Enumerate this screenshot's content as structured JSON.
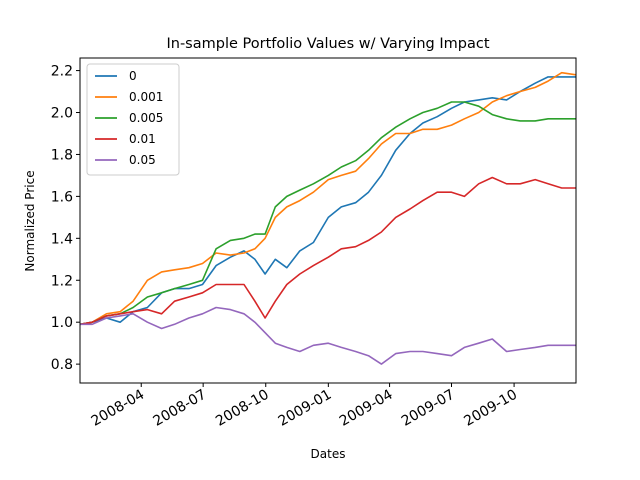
{
  "chart_data": {
    "type": "line",
    "title": "In-sample Portfolio Values w/ Varying Impact",
    "xlabel": "Dates",
    "ylabel": "Normalized Price",
    "xlim": [
      "2008-01-02",
      "2009-12-31"
    ],
    "ylim": [
      0.71,
      2.26
    ],
    "x_ticks": [
      "2008-04",
      "2008-07",
      "2008-10",
      "2009-01",
      "2009-04",
      "2009-07",
      "2009-10"
    ],
    "y_ticks": [
      0.8,
      1.0,
      1.2,
      1.4,
      1.6,
      1.8,
      2.0,
      2.2
    ],
    "grid": false,
    "legend_placement": "upper-left",
    "series": [
      {
        "name": "0",
        "color": "#1f77b4",
        "points": [
          [
            "2008-01-02",
            0.99
          ],
          [
            "2008-01-20",
            1.0
          ],
          [
            "2008-02-10",
            1.02
          ],
          [
            "2008-03-01",
            1.0
          ],
          [
            "2008-03-20",
            1.05
          ],
          [
            "2008-04-10",
            1.07
          ],
          [
            "2008-05-01",
            1.14
          ],
          [
            "2008-05-20",
            1.16
          ],
          [
            "2008-06-10",
            1.16
          ],
          [
            "2008-06-30",
            1.18
          ],
          [
            "2008-07-20",
            1.27
          ],
          [
            "2008-08-10",
            1.31
          ],
          [
            "2008-08-30",
            1.34
          ],
          [
            "2008-09-15",
            1.3
          ],
          [
            "2008-09-30",
            1.23
          ],
          [
            "2008-10-15",
            1.3
          ],
          [
            "2008-11-01",
            1.26
          ],
          [
            "2008-11-20",
            1.34
          ],
          [
            "2008-12-10",
            1.38
          ],
          [
            "2009-01-01",
            1.5
          ],
          [
            "2009-01-20",
            1.55
          ],
          [
            "2009-02-10",
            1.57
          ],
          [
            "2009-03-01",
            1.62
          ],
          [
            "2009-03-20",
            1.7
          ],
          [
            "2009-04-10",
            1.82
          ],
          [
            "2009-05-01",
            1.9
          ],
          [
            "2009-05-20",
            1.95
          ],
          [
            "2009-06-10",
            1.98
          ],
          [
            "2009-07-01",
            2.02
          ],
          [
            "2009-07-20",
            2.05
          ],
          [
            "2009-08-10",
            2.06
          ],
          [
            "2009-08-30",
            2.07
          ],
          [
            "2009-09-20",
            2.06
          ],
          [
            "2009-10-10",
            2.1
          ],
          [
            "2009-11-01",
            2.14
          ],
          [
            "2009-11-20",
            2.17
          ],
          [
            "2009-12-10",
            2.17
          ],
          [
            "2009-12-31",
            2.17
          ]
        ]
      },
      {
        "name": "0.001",
        "color": "#ff7f0e",
        "points": [
          [
            "2008-01-02",
            0.99
          ],
          [
            "2008-01-20",
            1.0
          ],
          [
            "2008-02-10",
            1.04
          ],
          [
            "2008-03-01",
            1.05
          ],
          [
            "2008-03-20",
            1.1
          ],
          [
            "2008-04-10",
            1.2
          ],
          [
            "2008-05-01",
            1.24
          ],
          [
            "2008-05-20",
            1.25
          ],
          [
            "2008-06-10",
            1.26
          ],
          [
            "2008-06-30",
            1.28
          ],
          [
            "2008-07-20",
            1.33
          ],
          [
            "2008-08-10",
            1.32
          ],
          [
            "2008-08-30",
            1.33
          ],
          [
            "2008-09-15",
            1.35
          ],
          [
            "2008-09-30",
            1.4
          ],
          [
            "2008-10-15",
            1.5
          ],
          [
            "2008-11-01",
            1.55
          ],
          [
            "2008-11-20",
            1.58
          ],
          [
            "2008-12-10",
            1.62
          ],
          [
            "2009-01-01",
            1.68
          ],
          [
            "2009-01-20",
            1.7
          ],
          [
            "2009-02-10",
            1.72
          ],
          [
            "2009-03-01",
            1.78
          ],
          [
            "2009-03-20",
            1.85
          ],
          [
            "2009-04-10",
            1.9
          ],
          [
            "2009-05-01",
            1.9
          ],
          [
            "2009-05-20",
            1.92
          ],
          [
            "2009-06-10",
            1.92
          ],
          [
            "2009-07-01",
            1.94
          ],
          [
            "2009-07-20",
            1.97
          ],
          [
            "2009-08-10",
            2.0
          ],
          [
            "2009-08-30",
            2.05
          ],
          [
            "2009-09-20",
            2.08
          ],
          [
            "2009-10-10",
            2.1
          ],
          [
            "2009-11-01",
            2.12
          ],
          [
            "2009-11-20",
            2.15
          ],
          [
            "2009-12-10",
            2.19
          ],
          [
            "2009-12-31",
            2.18
          ]
        ]
      },
      {
        "name": "0.005",
        "color": "#2ca02c",
        "points": [
          [
            "2008-01-02",
            0.99
          ],
          [
            "2008-01-20",
            1.0
          ],
          [
            "2008-02-10",
            1.03
          ],
          [
            "2008-03-01",
            1.04
          ],
          [
            "2008-03-20",
            1.07
          ],
          [
            "2008-04-10",
            1.12
          ],
          [
            "2008-05-01",
            1.14
          ],
          [
            "2008-05-20",
            1.16
          ],
          [
            "2008-06-10",
            1.18
          ],
          [
            "2008-06-30",
            1.2
          ],
          [
            "2008-07-20",
            1.35
          ],
          [
            "2008-08-10",
            1.39
          ],
          [
            "2008-08-30",
            1.4
          ],
          [
            "2008-09-15",
            1.42
          ],
          [
            "2008-09-30",
            1.42
          ],
          [
            "2008-10-15",
            1.55
          ],
          [
            "2008-11-01",
            1.6
          ],
          [
            "2008-11-20",
            1.63
          ],
          [
            "2008-12-10",
            1.66
          ],
          [
            "2009-01-01",
            1.7
          ],
          [
            "2009-01-20",
            1.74
          ],
          [
            "2009-02-10",
            1.77
          ],
          [
            "2009-03-01",
            1.82
          ],
          [
            "2009-03-20",
            1.88
          ],
          [
            "2009-04-10",
            1.93
          ],
          [
            "2009-05-01",
            1.97
          ],
          [
            "2009-05-20",
            2.0
          ],
          [
            "2009-06-10",
            2.02
          ],
          [
            "2009-07-01",
            2.05
          ],
          [
            "2009-07-20",
            2.05
          ],
          [
            "2009-08-10",
            2.03
          ],
          [
            "2009-08-30",
            1.99
          ],
          [
            "2009-09-20",
            1.97
          ],
          [
            "2009-10-10",
            1.96
          ],
          [
            "2009-11-01",
            1.96
          ],
          [
            "2009-11-20",
            1.97
          ],
          [
            "2009-12-10",
            1.97
          ],
          [
            "2009-12-31",
            1.97
          ]
        ]
      },
      {
        "name": "0.01",
        "color": "#d62728",
        "points": [
          [
            "2008-01-02",
            0.99
          ],
          [
            "2008-01-20",
            1.0
          ],
          [
            "2008-02-10",
            1.03
          ],
          [
            "2008-03-01",
            1.04
          ],
          [
            "2008-03-20",
            1.05
          ],
          [
            "2008-04-10",
            1.06
          ],
          [
            "2008-05-01",
            1.04
          ],
          [
            "2008-05-20",
            1.1
          ],
          [
            "2008-06-10",
            1.12
          ],
          [
            "2008-06-30",
            1.14
          ],
          [
            "2008-07-20",
            1.18
          ],
          [
            "2008-08-10",
            1.18
          ],
          [
            "2008-08-30",
            1.18
          ],
          [
            "2008-09-15",
            1.1
          ],
          [
            "2008-09-30",
            1.02
          ],
          [
            "2008-10-15",
            1.1
          ],
          [
            "2008-11-01",
            1.18
          ],
          [
            "2008-11-20",
            1.23
          ],
          [
            "2008-12-10",
            1.27
          ],
          [
            "2009-01-01",
            1.31
          ],
          [
            "2009-01-20",
            1.35
          ],
          [
            "2009-02-10",
            1.36
          ],
          [
            "2009-03-01",
            1.39
          ],
          [
            "2009-03-20",
            1.43
          ],
          [
            "2009-04-10",
            1.5
          ],
          [
            "2009-05-01",
            1.54
          ],
          [
            "2009-05-20",
            1.58
          ],
          [
            "2009-06-10",
            1.62
          ],
          [
            "2009-07-01",
            1.62
          ],
          [
            "2009-07-20",
            1.6
          ],
          [
            "2009-08-10",
            1.66
          ],
          [
            "2009-08-30",
            1.69
          ],
          [
            "2009-09-20",
            1.66
          ],
          [
            "2009-10-10",
            1.66
          ],
          [
            "2009-11-01",
            1.68
          ],
          [
            "2009-11-20",
            1.66
          ],
          [
            "2009-12-10",
            1.64
          ],
          [
            "2009-12-31",
            1.64
          ]
        ]
      },
      {
        "name": "0.05",
        "color": "#9467bd",
        "points": [
          [
            "2008-01-02",
            0.99
          ],
          [
            "2008-01-20",
            0.99
          ],
          [
            "2008-02-10",
            1.02
          ],
          [
            "2008-03-01",
            1.03
          ],
          [
            "2008-03-20",
            1.04
          ],
          [
            "2008-04-10",
            1.0
          ],
          [
            "2008-05-01",
            0.97
          ],
          [
            "2008-05-20",
            0.99
          ],
          [
            "2008-06-10",
            1.02
          ],
          [
            "2008-06-30",
            1.04
          ],
          [
            "2008-07-20",
            1.07
          ],
          [
            "2008-08-10",
            1.06
          ],
          [
            "2008-08-30",
            1.04
          ],
          [
            "2008-09-15",
            1.0
          ],
          [
            "2008-09-30",
            0.95
          ],
          [
            "2008-10-15",
            0.9
          ],
          [
            "2008-11-01",
            0.88
          ],
          [
            "2008-11-20",
            0.86
          ],
          [
            "2008-12-10",
            0.89
          ],
          [
            "2009-01-01",
            0.9
          ],
          [
            "2009-01-20",
            0.88
          ],
          [
            "2009-02-10",
            0.86
          ],
          [
            "2009-03-01",
            0.84
          ],
          [
            "2009-03-20",
            0.8
          ],
          [
            "2009-04-10",
            0.85
          ],
          [
            "2009-05-01",
            0.86
          ],
          [
            "2009-05-20",
            0.86
          ],
          [
            "2009-06-10",
            0.85
          ],
          [
            "2009-07-01",
            0.84
          ],
          [
            "2009-07-20",
            0.88
          ],
          [
            "2009-08-10",
            0.9
          ],
          [
            "2009-08-30",
            0.92
          ],
          [
            "2009-09-20",
            0.86
          ],
          [
            "2009-10-10",
            0.87
          ],
          [
            "2009-11-01",
            0.88
          ],
          [
            "2009-11-20",
            0.89
          ],
          [
            "2009-12-10",
            0.89
          ],
          [
            "2009-12-31",
            0.89
          ]
        ]
      }
    ]
  }
}
